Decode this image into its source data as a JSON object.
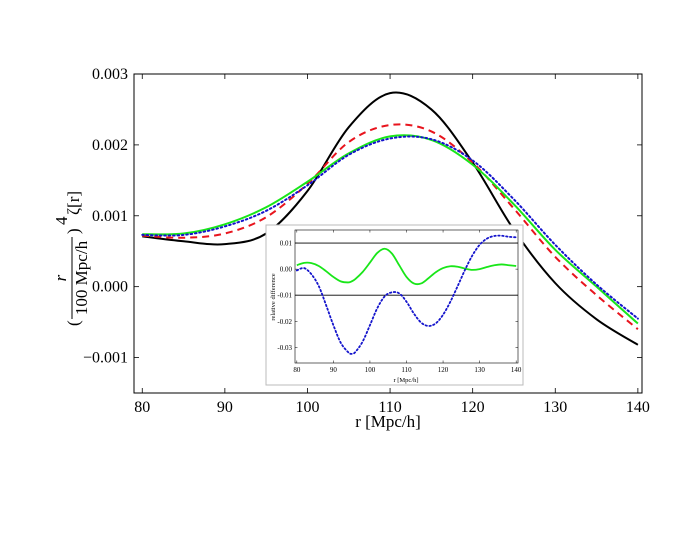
{
  "chart_data": [
    {
      "type": "line",
      "title": "",
      "xlabel": "r [Mpc/h]",
      "ylabel_parts": {
        "numerator": "r",
        "denominator": "100 Mpc/h",
        "exponent": "4",
        "suffix": "ζ[r]"
      },
      "xlim": [
        79,
        140.5
      ],
      "ylim": [
        -0.0015,
        0.003
      ],
      "xticks": [
        80,
        90,
        100,
        110,
        120,
        130,
        140
      ],
      "xtick_labels": [
        "80",
        "90",
        "100",
        "110",
        "120",
        "130",
        "140"
      ],
      "yticks": [
        -0.001,
        0.0,
        0.001,
        0.002,
        0.003
      ],
      "ytick_labels": [
        "−0.001",
        "0.000",
        "0.001",
        "0.002",
        "0.003"
      ],
      "x": [
        80,
        85,
        90,
        95,
        100,
        105,
        110,
        115,
        120,
        125,
        130,
        135,
        140
      ],
      "series": [
        {
          "name": "black",
          "color": "#000000",
          "style": "solid",
          "values": [
            0.00071,
            0.00064,
            0.0006,
            0.00075,
            0.00135,
            0.00225,
            0.00273,
            0.0025,
            0.00175,
            0.0008,
            5e-05,
            -0.00046,
            -0.00082
          ]
        },
        {
          "name": "red",
          "color": "#e8141d",
          "style": "dashed",
          "values": [
            0.00072,
            0.00069,
            0.00075,
            0.00098,
            0.00145,
            0.00204,
            0.00228,
            0.00219,
            0.00175,
            0.0011,
            0.00042,
            -0.00012,
            -0.0006
          ]
        },
        {
          "name": "green",
          "color": "#19e619",
          "style": "solid",
          "values": [
            0.00074,
            0.00075,
            0.00088,
            0.00112,
            0.00148,
            0.00188,
            0.00212,
            0.00207,
            0.00172,
            0.00116,
            0.00052,
            0.0,
            -0.00052
          ]
        },
        {
          "name": "blue",
          "color": "#1414cc",
          "style": "dotted",
          "values": [
            0.00073,
            0.00073,
            0.00085,
            0.00107,
            0.00143,
            0.00186,
            0.00209,
            0.00208,
            0.00178,
            0.00123,
            0.00059,
            3e-05,
            -0.00045
          ]
        }
      ]
    },
    {
      "type": "line",
      "title": "",
      "xlabel": "r [Mpc/h]",
      "ylabel": "relative difference",
      "xlim": [
        79.5,
        140.5
      ],
      "ylim": [
        -0.036,
        0.015
      ],
      "xticks": [
        80,
        90,
        100,
        110,
        120,
        130,
        140
      ],
      "xtick_labels": [
        "80",
        "90",
        "100",
        "110",
        "120",
        "130",
        "140"
      ],
      "yticks": [
        -0.03,
        -0.02,
        -0.01,
        0.0,
        0.01
      ],
      "ytick_labels": [
        "-0.03",
        "-0.02",
        "-0.01",
        "0.00",
        "0.01"
      ],
      "reference_lines": [
        0.01,
        -0.01
      ],
      "x": [
        80,
        82,
        84,
        86,
        88,
        90,
        92,
        94,
        95,
        96,
        98,
        100,
        102,
        104,
        106,
        108,
        110,
        112,
        114,
        116,
        118,
        120,
        122,
        124,
        126,
        128,
        130,
        132,
        134,
        136,
        138,
        140
      ],
      "series": [
        {
          "name": "green",
          "color": "#19e619",
          "style": "solid",
          "values": [
            0.0015,
            0.0024,
            0.0023,
            0.0012,
            -0.0008,
            -0.003,
            -0.0047,
            -0.0051,
            -0.0047,
            -0.0038,
            -0.0011,
            0.0025,
            0.0062,
            0.0078,
            0.006,
            0.0015,
            -0.003,
            -0.0055,
            -0.0055,
            -0.0035,
            -0.0012,
            0.0004,
            0.0011,
            0.0009,
            0.0002,
            -0.0003,
            0.0,
            0.0008,
            0.0015,
            0.0018,
            0.0015,
            0.0012
          ]
        },
        {
          "name": "blue",
          "color": "#1414cc",
          "style": "dotted",
          "values": [
            -0.0005,
            0.0004,
            -0.002,
            -0.0065,
            -0.0138,
            -0.0215,
            -0.0282,
            -0.0318,
            -0.0325,
            -0.0318,
            -0.0278,
            -0.0215,
            -0.015,
            -0.0105,
            -0.0089,
            -0.0093,
            -0.0125,
            -0.017,
            -0.0205,
            -0.0218,
            -0.0208,
            -0.0175,
            -0.0125,
            -0.0065,
            -0.0003,
            0.0052,
            0.0093,
            0.0117,
            0.0127,
            0.0128,
            0.0124,
            0.0122
          ]
        }
      ]
    }
  ]
}
